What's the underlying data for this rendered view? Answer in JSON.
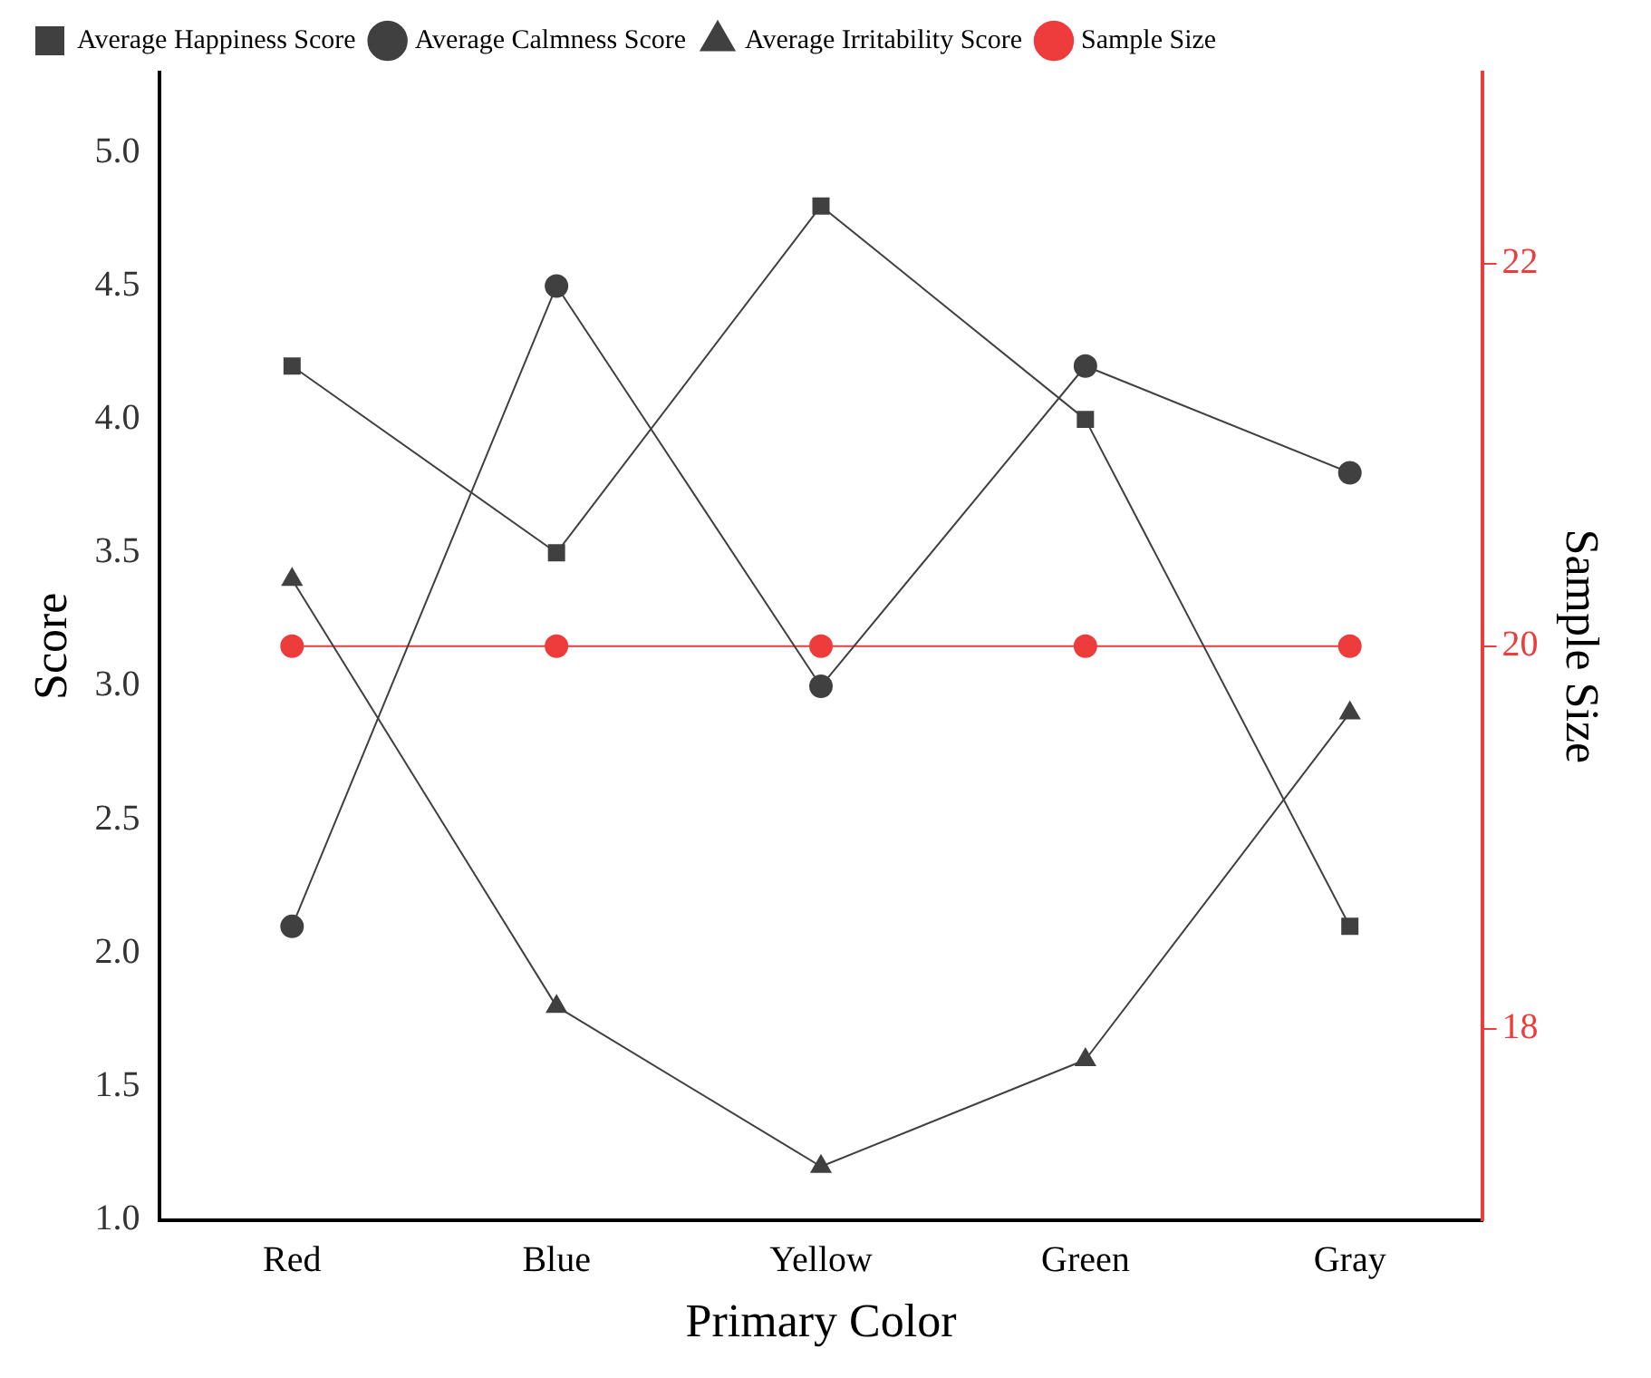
{
  "chart_data": {
    "type": "line",
    "xlabel": "Primary Color",
    "ylabel": "Score",
    "y2label": "Sample Size",
    "categories": [
      "Red",
      "Blue",
      "Yellow",
      "Green",
      "Gray"
    ],
    "series": [
      {
        "name": "Average Happiness Score",
        "color": "#404040",
        "marker": "square",
        "values": [
          4.2,
          3.5,
          4.8,
          4.0,
          2.1
        ]
      },
      {
        "name": "Average Calmness Score",
        "color": "#404040",
        "marker": "circle",
        "values": [
          2.1,
          4.5,
          3.0,
          4.2,
          3.8
        ]
      },
      {
        "name": "Average Irritability Score",
        "color": "#404040",
        "marker": "triangle",
        "values": [
          3.4,
          1.8,
          1.2,
          1.6,
          2.9
        ]
      },
      {
        "name": "Sample Size",
        "color": "#ee3b3b",
        "marker": "circle",
        "axis": "y2",
        "values": [
          20,
          20,
          20,
          20,
          20
        ]
      }
    ],
    "ylim": [
      1.0,
      5.3
    ],
    "yticks": [
      {
        "value": 1,
        "label": "1.0"
      },
      {
        "value": 1.5,
        "label": "1.5"
      },
      {
        "value": 2,
        "label": "2.0"
      },
      {
        "value": 2.5,
        "label": "2.5"
      },
      {
        "value": 3,
        "label": "3.0"
      },
      {
        "value": 3.5,
        "label": "3.5"
      },
      {
        "value": 4,
        "label": "4.0"
      },
      {
        "value": 4.5,
        "label": "4.5"
      },
      {
        "value": 5,
        "label": "5.0"
      }
    ],
    "y2lim": [
      17,
      23
    ],
    "y2ticks": [
      18,
      20,
      22
    ],
    "grid": false,
    "legend": "top left",
    "line_style": "solid"
  }
}
